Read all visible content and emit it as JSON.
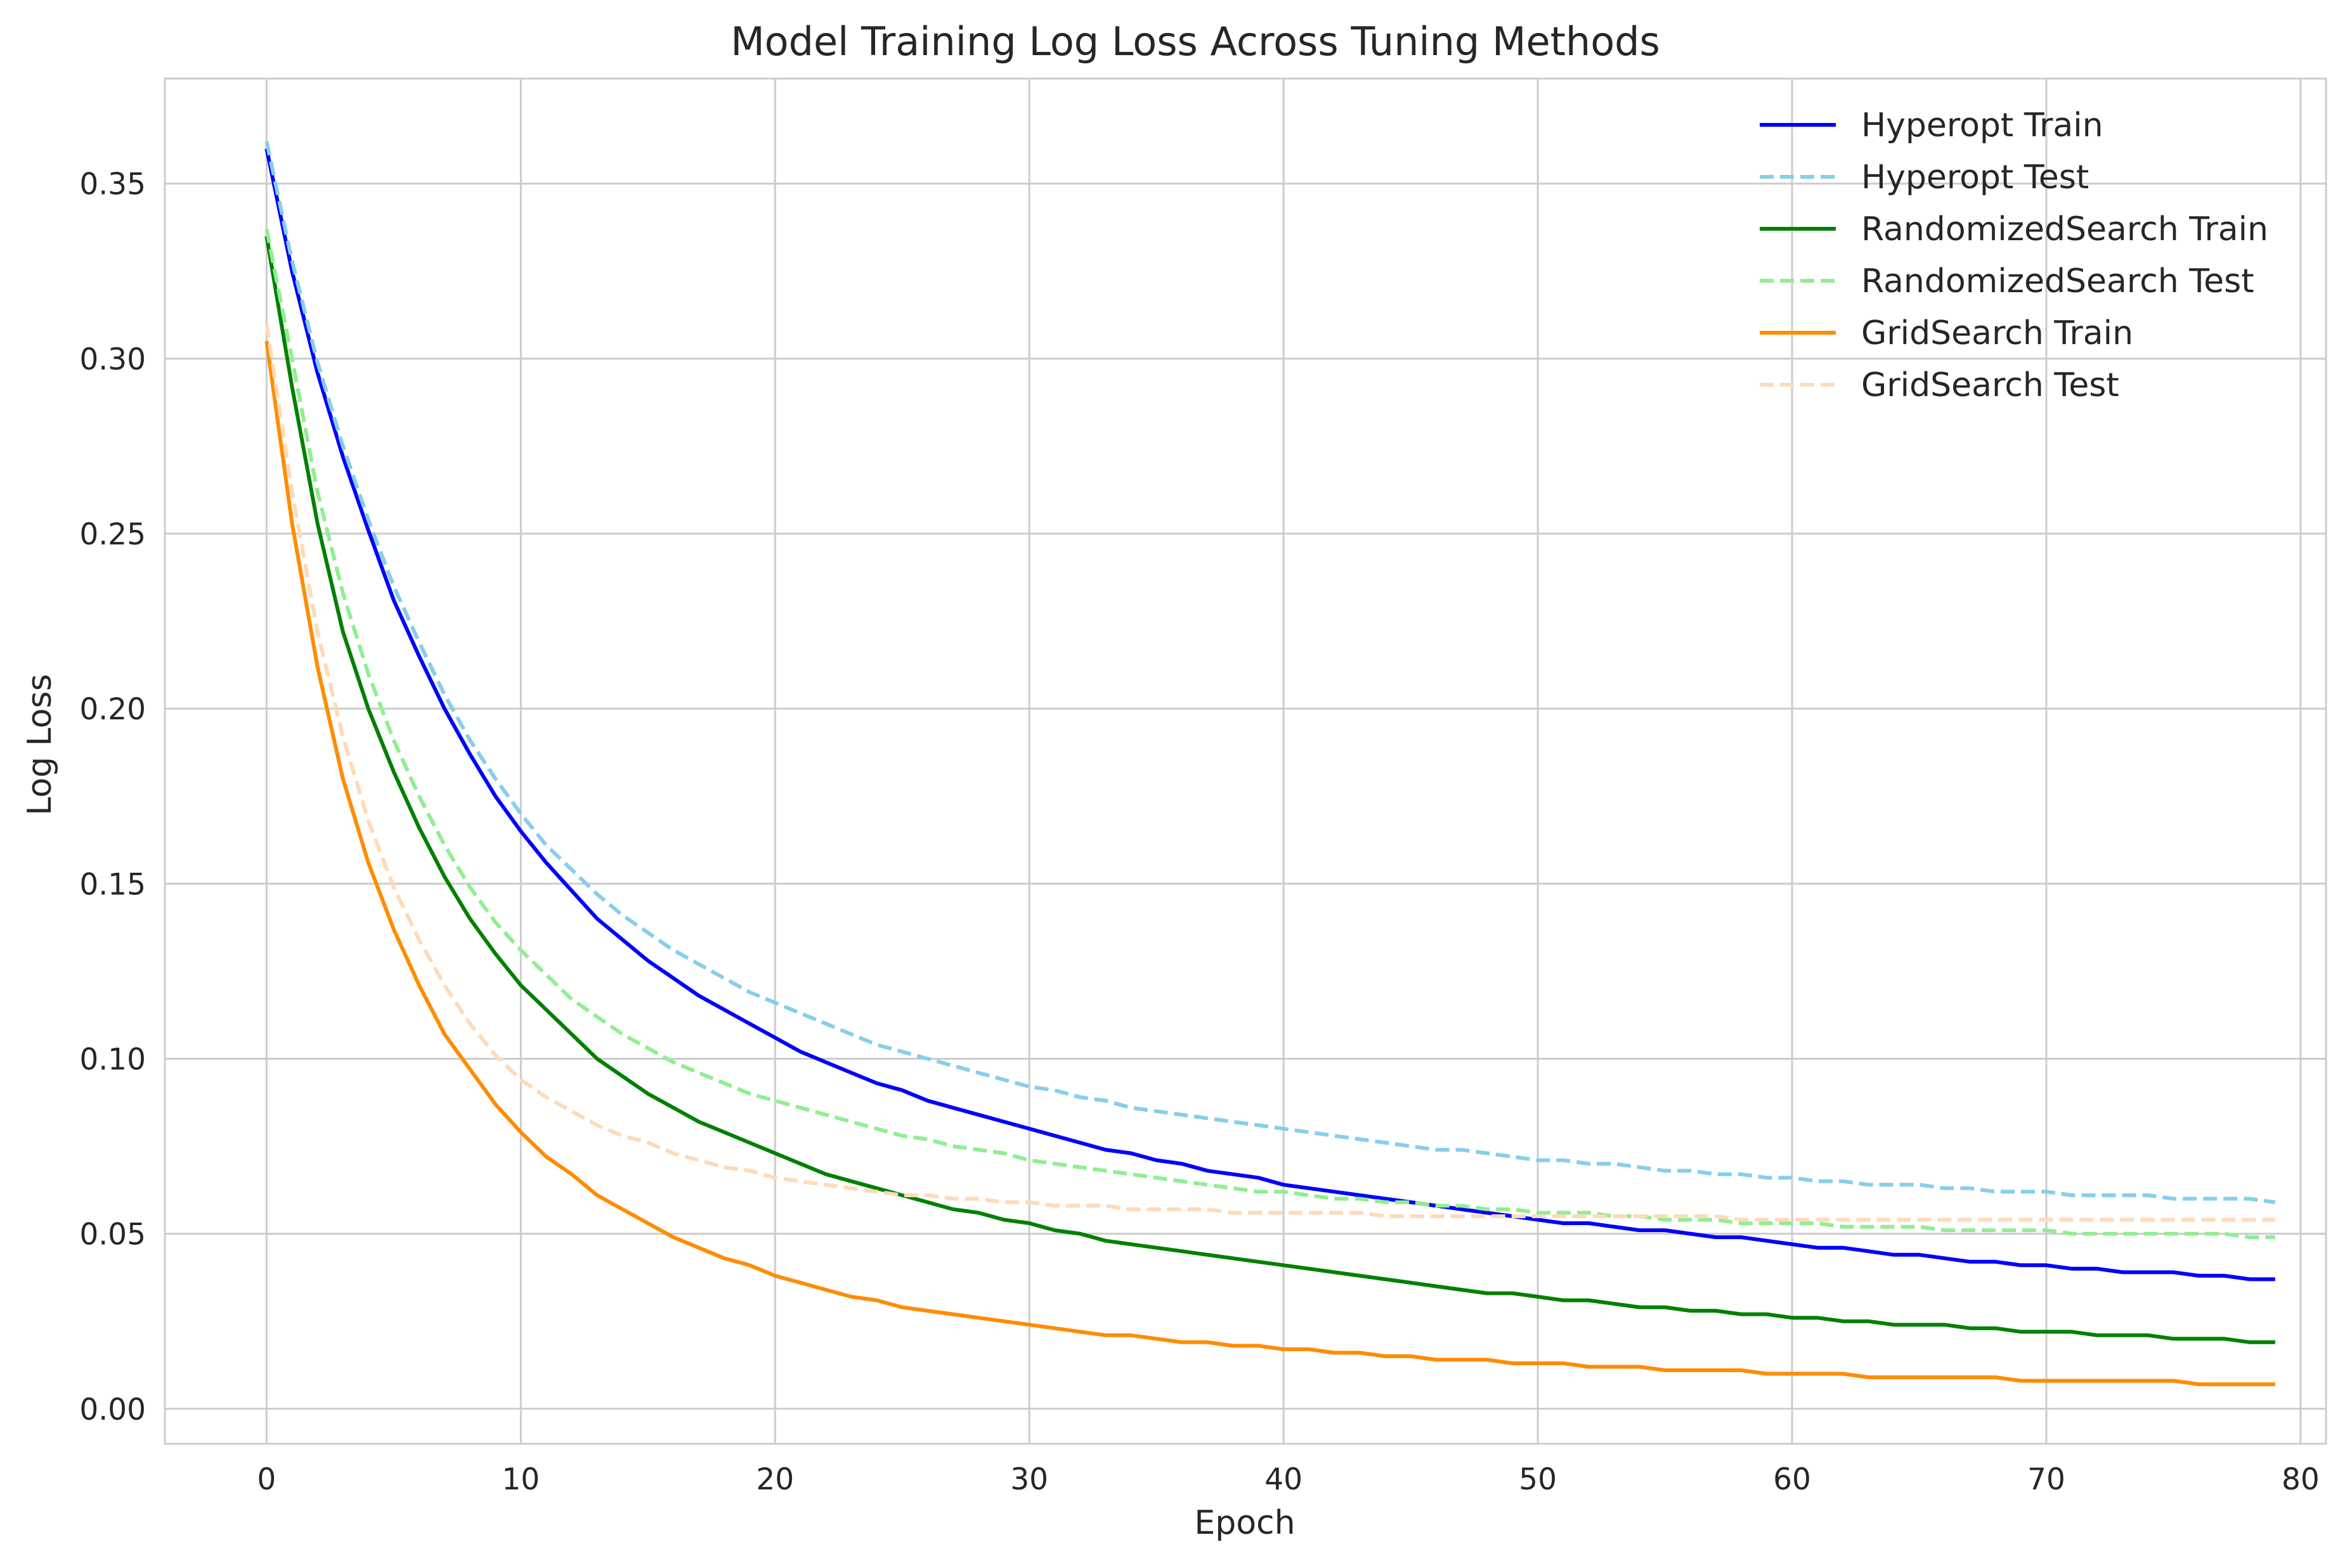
{
  "chart_data": {
    "type": "line",
    "title": "Model Training Log Loss Across Tuning Methods",
    "xlabel": "Epoch",
    "ylabel": "Log Loss",
    "xlim": [
      -4,
      81
    ],
    "ylim": [
      -0.01,
      0.38
    ],
    "x_ticks": [
      0,
      10,
      20,
      30,
      40,
      50,
      60,
      70,
      80
    ],
    "y_ticks": [
      "0.00",
      "0.05",
      "0.10",
      "0.15",
      "0.20",
      "0.25",
      "0.30",
      "0.35"
    ],
    "grid": true,
    "legend_position": "top-right",
    "x": {
      "start": 0,
      "end": 79,
      "step": 1
    },
    "series": [
      {
        "name": "Hyperopt Train",
        "color": "#0000ff",
        "style": "solid",
        "values": [
          0.36,
          0.325,
          0.296,
          0.272,
          0.251,
          0.231,
          0.215,
          0.2,
          0.187,
          0.175,
          0.165,
          0.156,
          0.148,
          0.14,
          0.134,
          0.128,
          0.123,
          0.118,
          0.114,
          0.11,
          0.106,
          0.102,
          0.099,
          0.096,
          0.093,
          0.091,
          0.088,
          0.086,
          0.084,
          0.082,
          0.08,
          0.078,
          0.076,
          0.074,
          0.073,
          0.071,
          0.07,
          0.068,
          0.067,
          0.066,
          0.064,
          0.063,
          0.062,
          0.061,
          0.06,
          0.059,
          0.058,
          0.057,
          0.056,
          0.055,
          0.054,
          0.053,
          0.053,
          0.052,
          0.051,
          0.051,
          0.05,
          0.049,
          0.049,
          0.048,
          0.047,
          0.046,
          0.046,
          0.045,
          0.044,
          0.044,
          0.043,
          0.042,
          0.042,
          0.041,
          0.041,
          0.04,
          0.04,
          0.039,
          0.039,
          0.039,
          0.038,
          0.038,
          0.037,
          0.037
        ]
      },
      {
        "name": "Hyperopt Test",
        "color": "#87ceeb",
        "style": "dashed",
        "values": [
          0.362,
          0.328,
          0.299,
          0.275,
          0.254,
          0.235,
          0.219,
          0.204,
          0.191,
          0.18,
          0.17,
          0.161,
          0.154,
          0.147,
          0.141,
          0.136,
          0.131,
          0.127,
          0.123,
          0.119,
          0.116,
          0.113,
          0.11,
          0.107,
          0.104,
          0.102,
          0.1,
          0.098,
          0.096,
          0.094,
          0.092,
          0.091,
          0.089,
          0.088,
          0.086,
          0.085,
          0.084,
          0.083,
          0.082,
          0.081,
          0.08,
          0.079,
          0.078,
          0.077,
          0.076,
          0.075,
          0.074,
          0.074,
          0.073,
          0.072,
          0.071,
          0.071,
          0.07,
          0.07,
          0.069,
          0.068,
          0.068,
          0.067,
          0.067,
          0.066,
          0.066,
          0.065,
          0.065,
          0.064,
          0.064,
          0.064,
          0.063,
          0.063,
          0.062,
          0.062,
          0.062,
          0.061,
          0.061,
          0.061,
          0.061,
          0.06,
          0.06,
          0.06,
          0.06,
          0.059
        ]
      },
      {
        "name": "RandomizedSearch Train",
        "color": "#008000",
        "style": "solid",
        "values": [
          0.335,
          0.292,
          0.253,
          0.222,
          0.2,
          0.182,
          0.166,
          0.152,
          0.14,
          0.13,
          0.121,
          0.114,
          0.107,
          0.1,
          0.095,
          0.09,
          0.086,
          0.082,
          0.079,
          0.076,
          0.073,
          0.07,
          0.067,
          0.065,
          0.063,
          0.061,
          0.059,
          0.057,
          0.056,
          0.054,
          0.053,
          0.051,
          0.05,
          0.048,
          0.047,
          0.046,
          0.045,
          0.044,
          0.043,
          0.042,
          0.041,
          0.04,
          0.039,
          0.038,
          0.037,
          0.036,
          0.035,
          0.034,
          0.033,
          0.033,
          0.032,
          0.031,
          0.031,
          0.03,
          0.029,
          0.029,
          0.028,
          0.028,
          0.027,
          0.027,
          0.026,
          0.026,
          0.025,
          0.025,
          0.024,
          0.024,
          0.024,
          0.023,
          0.023,
          0.022,
          0.022,
          0.022,
          0.021,
          0.021,
          0.021,
          0.02,
          0.02,
          0.02,
          0.019,
          0.019
        ]
      },
      {
        "name": "RandomizedSearch Test",
        "color": "#90ee90",
        "style": "dashed",
        "values": [
          0.337,
          0.3,
          0.262,
          0.233,
          0.21,
          0.191,
          0.175,
          0.161,
          0.149,
          0.139,
          0.131,
          0.124,
          0.117,
          0.112,
          0.107,
          0.103,
          0.099,
          0.096,
          0.093,
          0.09,
          0.088,
          0.086,
          0.084,
          0.082,
          0.08,
          0.078,
          0.077,
          0.075,
          0.074,
          0.073,
          0.071,
          0.07,
          0.069,
          0.068,
          0.067,
          0.066,
          0.065,
          0.064,
          0.063,
          0.062,
          0.062,
          0.061,
          0.06,
          0.06,
          0.059,
          0.059,
          0.058,
          0.058,
          0.057,
          0.057,
          0.056,
          0.056,
          0.056,
          0.055,
          0.055,
          0.054,
          0.054,
          0.054,
          0.053,
          0.053,
          0.053,
          0.053,
          0.052,
          0.052,
          0.052,
          0.052,
          0.051,
          0.051,
          0.051,
          0.051,
          0.051,
          0.05,
          0.05,
          0.05,
          0.05,
          0.05,
          0.05,
          0.05,
          0.049,
          0.049
        ]
      },
      {
        "name": "GridSearch Train",
        "color": "#ff8c00",
        "style": "solid",
        "values": [
          0.305,
          0.253,
          0.212,
          0.18,
          0.156,
          0.137,
          0.121,
          0.107,
          0.097,
          0.087,
          0.079,
          0.072,
          0.067,
          0.061,
          0.057,
          0.053,
          0.049,
          0.046,
          0.043,
          0.041,
          0.038,
          0.036,
          0.034,
          0.032,
          0.031,
          0.029,
          0.028,
          0.027,
          0.026,
          0.025,
          0.024,
          0.023,
          0.022,
          0.021,
          0.021,
          0.02,
          0.019,
          0.019,
          0.018,
          0.018,
          0.017,
          0.017,
          0.016,
          0.016,
          0.015,
          0.015,
          0.014,
          0.014,
          0.014,
          0.013,
          0.013,
          0.013,
          0.012,
          0.012,
          0.012,
          0.011,
          0.011,
          0.011,
          0.011,
          0.01,
          0.01,
          0.01,
          0.01,
          0.009,
          0.009,
          0.009,
          0.009,
          0.009,
          0.009,
          0.008,
          0.008,
          0.008,
          0.008,
          0.008,
          0.008,
          0.008,
          0.007,
          0.007,
          0.007,
          0.007
        ]
      },
      {
        "name": "GridSearch Test",
        "color": "#ffdab9",
        "style": "dashed",
        "values": [
          0.31,
          0.262,
          0.222,
          0.192,
          0.168,
          0.149,
          0.134,
          0.121,
          0.11,
          0.101,
          0.094,
          0.089,
          0.085,
          0.081,
          0.078,
          0.076,
          0.073,
          0.071,
          0.069,
          0.068,
          0.066,
          0.065,
          0.064,
          0.063,
          0.062,
          0.061,
          0.061,
          0.06,
          0.06,
          0.059,
          0.059,
          0.058,
          0.058,
          0.058,
          0.057,
          0.057,
          0.057,
          0.057,
          0.056,
          0.056,
          0.056,
          0.056,
          0.056,
          0.056,
          0.055,
          0.055,
          0.055,
          0.055,
          0.055,
          0.055,
          0.055,
          0.055,
          0.055,
          0.055,
          0.055,
          0.055,
          0.055,
          0.055,
          0.054,
          0.054,
          0.054,
          0.054,
          0.054,
          0.054,
          0.054,
          0.054,
          0.054,
          0.054,
          0.054,
          0.054,
          0.054,
          0.054,
          0.054,
          0.054,
          0.054,
          0.054,
          0.054,
          0.054,
          0.054,
          0.054
        ]
      }
    ]
  }
}
